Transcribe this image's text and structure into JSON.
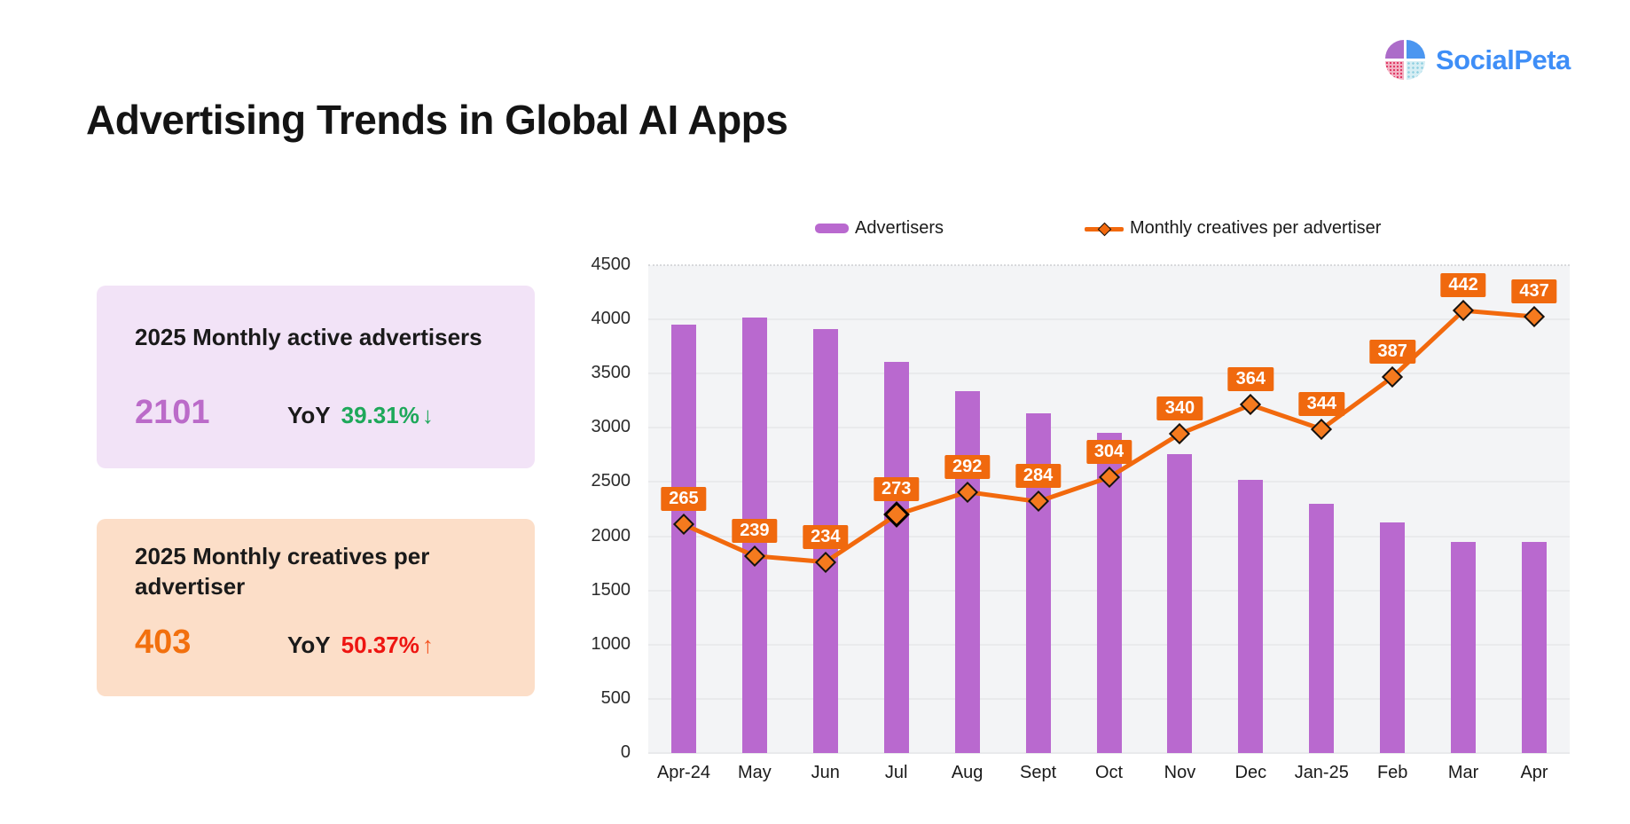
{
  "logo": {
    "text": "SocialPeta",
    "text_color": "#3E8EF7",
    "quadrants": {
      "top_left": "#AC6CC9",
      "top_right": "#4B96F0",
      "bottom_left_base": "#F2B3C4",
      "bottom_left_dot": "#E03A66",
      "bottom_right_base": "#D6EEF4",
      "bottom_right_dot": "#8ECFE0"
    }
  },
  "header": {
    "title": "Advertising Trends in Global AI Apps"
  },
  "cards": [
    {
      "title": "2025 Monthly active advertisers",
      "value": "2101",
      "value_color": "#BB6BC9",
      "yoy_label": "YoY",
      "yoy_value": "39.31%",
      "yoy_arrow": "↓",
      "yoy_color": "#1EA85A",
      "arrow_color": "#1EA85A",
      "bg": "#F2E3F7"
    },
    {
      "title": "2025 Monthly creatives per advertiser",
      "value": "403",
      "value_color": "#F2700E",
      "yoy_label": "YoY",
      "yoy_value": "50.37%",
      "yoy_arrow": "↑",
      "yoy_color": "#EE1511",
      "arrow_color": "#F4511E",
      "bg": "#FCDEC8"
    }
  ],
  "legend": [
    {
      "label": "Advertisers",
      "type": "bar",
      "color": "#B969CF"
    },
    {
      "label": "Monthly creatives per advertiser",
      "type": "line",
      "color": "#F2690D"
    }
  ],
  "chart_data": {
    "type": "bar+line",
    "title": "Advertising Trends in Global AI Apps",
    "categories": [
      "Apr-24",
      "May",
      "Jun",
      "Jul",
      "Aug",
      "Sept",
      "Oct",
      "Nov",
      "Dec",
      "Jan-25",
      "Feb",
      "Mar",
      "Apr"
    ],
    "series": [
      {
        "name": "Advertisers",
        "type": "bar",
        "color": "#B969CF",
        "axis": "left",
        "values": [
          3950,
          4020,
          3910,
          3610,
          3340,
          3130,
          2950,
          2760,
          2520,
          2300,
          2130,
          1950,
          1950
        ]
      },
      {
        "name": "Monthly creatives per advertiser",
        "type": "line",
        "color": "#F2690D",
        "axis": "secondary",
        "values": [
          265,
          239,
          234,
          273,
          292,
          284,
          304,
          340,
          364,
          344,
          387,
          442,
          437
        ]
      }
    ],
    "ylim": [
      0,
      4500
    ],
    "yticks": [
      0,
      500,
      1000,
      1500,
      2000,
      2500,
      3000,
      3500,
      4000,
      4500
    ],
    "secondary_axis_mapping": {
      "scale": 11.15,
      "offset": -847
    },
    "highlight_index": 3,
    "grid": true,
    "legend_position": "top",
    "plot_bg": "#F3F4F6",
    "grid_color": "#E9EAEC",
    "label_bg": "#F0690E",
    "marker_fill": "#F57A1E"
  }
}
